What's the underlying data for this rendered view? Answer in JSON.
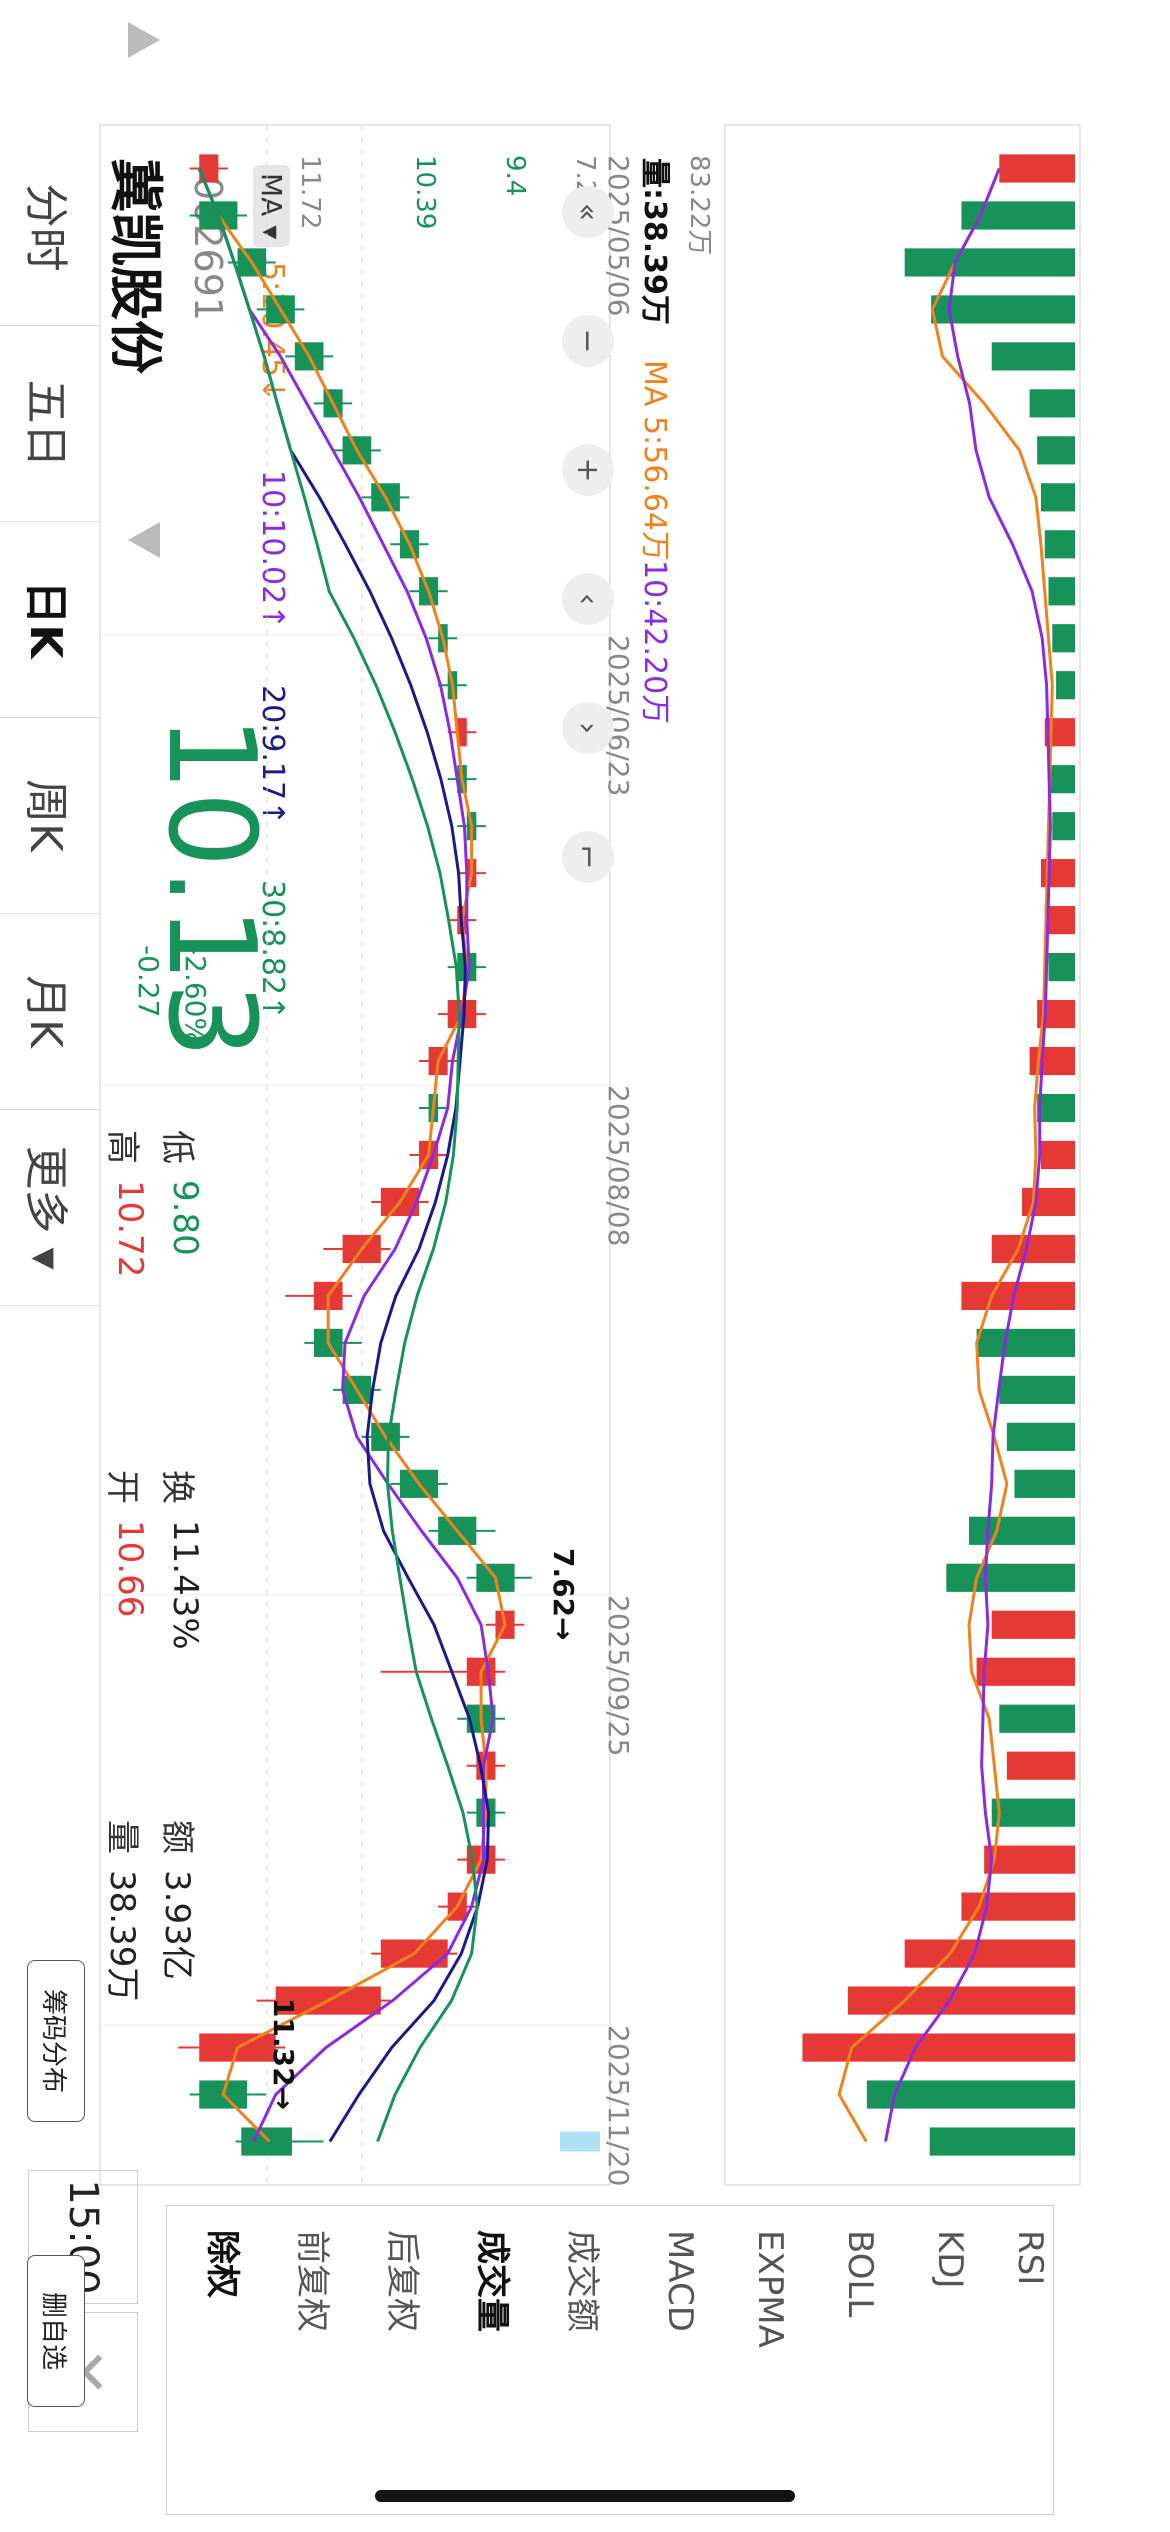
{
  "stock": {
    "name": "冀凯股份",
    "code": "002691",
    "price": "10.13",
    "change": "-0.27",
    "change_pct": "-2.60%",
    "time": "15:00"
  },
  "quote": {
    "high_label": "高",
    "high": "10.72",
    "low_label": "低",
    "low": "9.80",
    "open_label": "开",
    "open": "10.66",
    "turnover_label": "换",
    "turnover": "11.43%",
    "volume_label": "量",
    "volume": "38.39万",
    "amount_label": "额",
    "amount": "3.93亿"
  },
  "ma_legend": {
    "selector": "MA ▾",
    "ma5": "5:10.45↓",
    "ma10": "10:10.02↑",
    "ma20": "20:9.17↑",
    "ma30": "30:8.82↑"
  },
  "price_axis": {
    "top": "11.72",
    "level2": "10.39",
    "level3": "9.4",
    "bottom": "7.22"
  },
  "dates": [
    "2025/05/06",
    "2025/06/23",
    "2025/08/08",
    "2025/09/25",
    "2025/11/20"
  ],
  "annotations": {
    "high_mark": "11.32",
    "low_mark": "7.62"
  },
  "volume_legend": {
    "vol": "量:38.39万",
    "ma5": "MA 5:56.64万",
    "ma10": "10:42.20万",
    "axis_top": "83.22万"
  },
  "tabs": [
    "分时",
    "五日",
    "日K",
    "周K",
    "月K",
    "更多 ▾"
  ],
  "active_tab": 2,
  "right_panel": {
    "items": [
      "除权",
      "前复权",
      "后复权",
      "成交量",
      "成交额",
      "MACD",
      "EXPMA",
      "BOLL",
      "KDJ",
      "RSI"
    ],
    "active": [
      "除权",
      "成交量"
    ]
  },
  "buttons": {
    "chip_dist": "筹码分布",
    "del_watch": "删自选"
  },
  "colors": {
    "up": "#e53935",
    "down": "#17935a",
    "ma5": "#f0821e",
    "ma10": "#8a2be2",
    "ma20": "#1a1a8c",
    "ma30": "#17935a"
  },
  "chart_data": {
    "type": "candlestick",
    "y_range": [
      7.22,
      11.72
    ],
    "volume_range": [
      0,
      83.22
    ],
    "volume_unit": "万",
    "x_range": [
      "2025/05/06",
      "2025/11/20"
    ],
    "candles_sampled": [
      {
        "o": 10.9,
        "c": 11.1,
        "h": 11.2,
        "l": 10.8
      },
      {
        "o": 11.1,
        "c": 10.7,
        "h": 11.2,
        "l": 10.6
      },
      {
        "o": 10.7,
        "c": 10.4,
        "h": 10.8,
        "l": 10.3
      },
      {
        "o": 10.4,
        "c": 10.1,
        "h": 10.5,
        "l": 10.0
      },
      {
        "o": 10.1,
        "c": 9.8,
        "h": 10.2,
        "l": 9.7
      },
      {
        "o": 9.8,
        "c": 9.6,
        "h": 9.9,
        "l": 9.5
      },
      {
        "o": 9.6,
        "c": 9.3,
        "h": 9.7,
        "l": 9.2
      },
      {
        "o": 9.3,
        "c": 9.0,
        "h": 9.4,
        "l": 8.9
      },
      {
        "o": 9.0,
        "c": 8.8,
        "h": 9.1,
        "l": 8.7
      },
      {
        "o": 8.8,
        "c": 8.6,
        "h": 8.9,
        "l": 8.5
      },
      {
        "o": 8.6,
        "c": 8.5,
        "h": 8.7,
        "l": 8.4
      },
      {
        "o": 8.5,
        "c": 8.4,
        "h": 8.6,
        "l": 8.3
      },
      {
        "o": 8.3,
        "c": 8.4,
        "h": 8.5,
        "l": 8.2
      },
      {
        "o": 8.4,
        "c": 8.3,
        "h": 8.5,
        "l": 8.2
      },
      {
        "o": 8.3,
        "c": 8.2,
        "h": 8.4,
        "l": 8.1
      },
      {
        "o": 8.2,
        "c": 8.3,
        "h": 8.4,
        "l": 8.1
      },
      {
        "o": 8.3,
        "c": 8.4,
        "h": 8.5,
        "l": 8.2
      },
      {
        "o": 8.4,
        "c": 8.2,
        "h": 8.5,
        "l": 8.1
      },
      {
        "o": 8.2,
        "c": 8.5,
        "h": 8.6,
        "l": 8.1
      },
      {
        "o": 8.5,
        "c": 8.7,
        "h": 8.8,
        "l": 8.4
      },
      {
        "o": 8.7,
        "c": 8.6,
        "h": 8.8,
        "l": 8.5
      },
      {
        "o": 8.6,
        "c": 8.8,
        "h": 8.9,
        "l": 8.5
      },
      {
        "o": 8.8,
        "c": 9.2,
        "h": 9.3,
        "l": 8.7
      },
      {
        "o": 9.2,
        "c": 9.6,
        "h": 9.8,
        "l": 9.1
      },
      {
        "o": 9.6,
        "c": 9.9,
        "h": 10.2,
        "l": 9.5
      },
      {
        "o": 9.9,
        "c": 9.6,
        "h": 10.0,
        "l": 9.4
      },
      {
        "o": 9.6,
        "c": 9.3,
        "h": 9.7,
        "l": 9.2
      },
      {
        "o": 9.3,
        "c": 9.0,
        "h": 9.4,
        "l": 8.9
      },
      {
        "o": 9.0,
        "c": 8.6,
        "h": 9.1,
        "l": 8.5
      },
      {
        "o": 8.6,
        "c": 8.2,
        "h": 8.7,
        "l": 8.0
      },
      {
        "o": 8.2,
        "c": 7.8,
        "h": 8.3,
        "l": 7.62
      },
      {
        "o": 7.8,
        "c": 8.0,
        "h": 8.1,
        "l": 7.7
      },
      {
        "o": 8.0,
        "c": 8.3,
        "h": 9.2,
        "l": 7.9
      },
      {
        "o": 8.3,
        "c": 8.0,
        "h": 8.4,
        "l": 7.9
      },
      {
        "o": 8.0,
        "c": 8.2,
        "h": 8.3,
        "l": 7.9
      },
      {
        "o": 8.2,
        "c": 8.0,
        "h": 8.3,
        "l": 7.9
      },
      {
        "o": 8.0,
        "c": 8.3,
        "h": 8.4,
        "l": 7.9
      },
      {
        "o": 8.3,
        "c": 8.5,
        "h": 8.6,
        "l": 8.2
      },
      {
        "o": 8.5,
        "c": 9.2,
        "h": 9.3,
        "l": 8.4
      },
      {
        "o": 9.2,
        "c": 10.3,
        "h": 10.5,
        "l": 9.1
      },
      {
        "o": 10.3,
        "c": 11.1,
        "h": 11.32,
        "l": 10.2
      },
      {
        "o": 11.1,
        "c": 10.6,
        "h": 11.2,
        "l": 10.4
      },
      {
        "o": 10.66,
        "c": 10.13,
        "h": 10.72,
        "l": 9.8
      }
    ],
    "volumes_sampled": [
      20,
      30,
      45,
      38,
      22,
      12,
      10,
      9,
      8,
      7,
      6,
      5,
      8,
      7,
      6,
      9,
      8,
      7,
      10,
      12,
      10,
      9,
      14,
      22,
      30,
      26,
      20,
      18,
      16,
      28,
      34,
      22,
      26,
      20,
      18,
      22,
      24,
      30,
      45,
      60,
      72,
      55,
      38.39
    ]
  }
}
